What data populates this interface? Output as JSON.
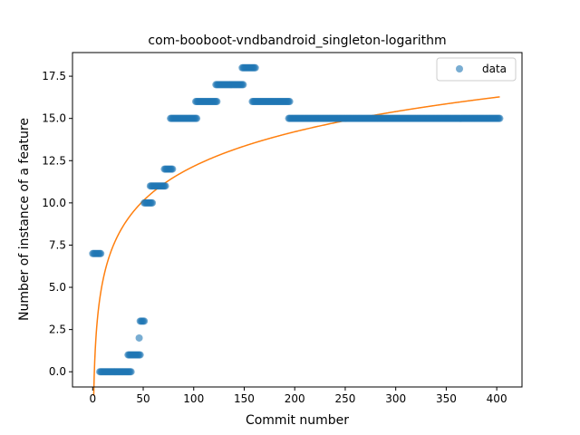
{
  "chart_data": {
    "type": "scatter",
    "title": "com-booboot-vndbandroid_singleton-logarithm",
    "xlabel": "Commit number",
    "ylabel": "Number of instance of a feature",
    "xlim": [
      -20,
      425
    ],
    "ylim": [
      -0.9,
      18.9
    ],
    "grid": false,
    "legend": {
      "position": "top-right",
      "entries": [
        "data"
      ]
    },
    "x_ticks": [
      0,
      50,
      100,
      150,
      200,
      250,
      300,
      350,
      400
    ],
    "x_tick_labels": [
      "0",
      "50",
      "100",
      "150",
      "200",
      "250",
      "300",
      "350",
      "400"
    ],
    "y_ticks": [
      0,
      2.5,
      5,
      7.5,
      10,
      12.5,
      15,
      17.5
    ],
    "y_tick_labels": [
      "0.0",
      "2.5",
      "5.0",
      "7.5",
      "10.0",
      "12.5",
      "15.0",
      "17.5"
    ],
    "colors": {
      "data": "#1f77b4",
      "fit": "#ff7f0e"
    },
    "series": [
      {
        "name": "data",
        "kind": "scatter",
        "segments": [
          {
            "x_start": 0,
            "x_end": 8,
            "y": 7
          },
          {
            "x_start": 7,
            "x_end": 38,
            "y": 0
          },
          {
            "x_start": 35,
            "x_end": 47,
            "y": 1
          },
          {
            "x_start": 46,
            "x_end": 46,
            "y": 2
          },
          {
            "x_start": 47,
            "x_end": 51,
            "y": 3
          },
          {
            "x_start": 51,
            "x_end": 59,
            "y": 10
          },
          {
            "x_start": 57,
            "x_end": 72,
            "y": 11
          },
          {
            "x_start": 71,
            "x_end": 79,
            "y": 12
          },
          {
            "x_start": 77,
            "x_end": 103,
            "y": 15
          },
          {
            "x_start": 102,
            "x_end": 123,
            "y": 16
          },
          {
            "x_start": 122,
            "x_end": 149,
            "y": 17
          },
          {
            "x_start": 148,
            "x_end": 161,
            "y": 18
          },
          {
            "x_start": 158,
            "x_end": 195,
            "y": 16
          },
          {
            "x_start": 194,
            "x_end": 403,
            "y": 15
          }
        ]
      },
      {
        "kind": "line",
        "model": "logarithmic",
        "a": 2.95,
        "b": -1.42,
        "x_start": 1,
        "x_end": 403
      }
    ]
  }
}
